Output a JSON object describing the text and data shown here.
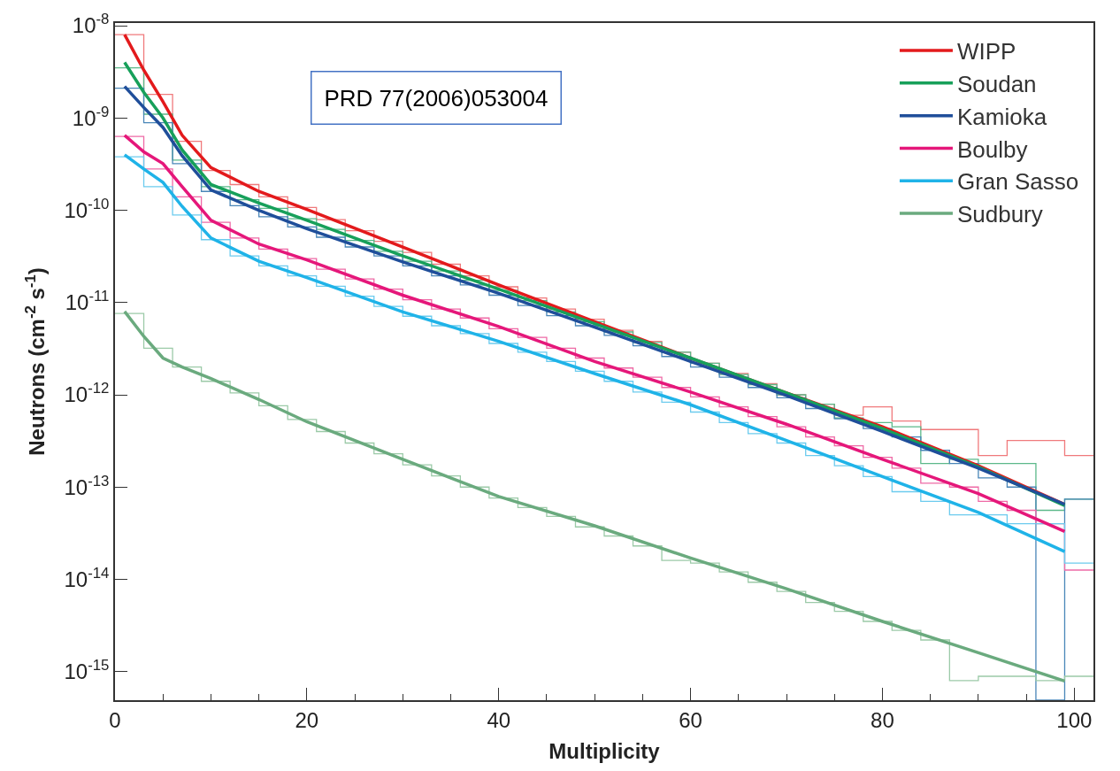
{
  "chart_data": {
    "type": "histogram",
    "xlabel": "Multiplicity",
    "ylabel": "Neutrons (cm$^{-2}$ s$^{-1}$)",
    "annotations": [
      "PRD 77(2006)053004"
    ],
    "bins": [
      0,
      3,
      6,
      9,
      12,
      15,
      18,
      21,
      24,
      27,
      30,
      33,
      36,
      39,
      42,
      45,
      48,
      51,
      54,
      57,
      60,
      63,
      66,
      69,
      72,
      75,
      78,
      81,
      84,
      87,
      90,
      93,
      96,
      99,
      102
    ],
    "xlim": [
      0,
      102
    ],
    "xticks": [
      0,
      20,
      40,
      60,
      80,
      100
    ],
    "log": "y",
    "ylim": [
      4.9e-16,
      1.07e-08
    ],
    "yticks": [
      {
        "value": 1e-15,
        "label": "10$^{-15}$"
      },
      {
        "value": 1e-14,
        "label": "10$^{-14}$"
      },
      {
        "value": 1e-13,
        "label": "10$^{-13}$"
      },
      {
        "value": 1e-12,
        "label": "10$^{-12}$"
      },
      {
        "value": 1e-11,
        "label": "10$^{-11}$"
      },
      {
        "value": 1e-10,
        "label": "10$^{-10}$"
      },
      {
        "value": 1e-09,
        "label": "10$^{-9}$"
      },
      {
        "value": 1e-08,
        "label": "10$^{-8}$"
      }
    ],
    "legend": "top right",
    "series": [
      {
        "color": "#f07a7c",
        "values": [
          8e-09,
          1.8e-09,
          5.6e-10,
          2.7e-10,
          1.9e-10,
          1.4e-10,
          1.07e-10,
          7.9e-11,
          6e-11,
          4.6e-11,
          3.5e-11,
          2.6e-11,
          1.95e-11,
          1.48e-11,
          1.12e-11,
          8.5e-12,
          6.6e-12,
          5e-12,
          3.8e-12,
          2.9e-12,
          2.2e-12,
          1.7e-12,
          1.32e-12,
          1e-12,
          7.9e-13,
          6e-13,
          7.4e-13,
          5.2e-13,
          4.2e-13,
          4.2e-13,
          2.2e-13,
          3.2e-13,
          3.2e-13,
          2.2e-13
        ]
      },
      {
        "color": "#5cb98a",
        "values": [
          3.5e-09,
          1.1e-09,
          3.5e-10,
          1.8e-10,
          1.3e-10,
          1.05e-10,
          8.1e-11,
          6.2e-11,
          4.7e-11,
          3.6e-11,
          2.8e-11,
          2.2e-11,
          1.74e-11,
          1.35e-11,
          1.05e-11,
          7.9e-12,
          6.2e-12,
          4.8e-12,
          3.7e-12,
          2.9e-12,
          2.2e-12,
          1.66e-12,
          1.29e-12,
          1e-12,
          7.9e-13,
          5.6e-13,
          5e-13,
          4.5e-13,
          1.8e-13,
          2e-13,
          1.8e-13,
          1.8e-13,
          5.6e-14,
          7.4e-14
        ]
      },
      {
        "color": "#4a86b8",
        "values": [
          2.1e-09,
          8.9e-10,
          3.2e-10,
          1.6e-10,
          1.12e-10,
          8.5e-11,
          6.6e-11,
          5.1e-11,
          4e-11,
          3.2e-11,
          2.5e-11,
          1.95e-11,
          1.55e-11,
          1.2e-11,
          9.3e-12,
          7.2e-12,
          5.6e-12,
          4.4e-12,
          3.4e-12,
          2.6e-12,
          2e-12,
          1.55e-12,
          1.2e-12,
          9.3e-13,
          7.1e-13,
          5.5e-13,
          4.3e-13,
          3.5e-13,
          2.5e-13,
          1.8e-13,
          1.26e-13,
          1e-13,
          null,
          7.4e-14
        ]
      },
      {
        "color": "#ee6aa6",
        "values": [
          6.3e-10,
          2.8e-10,
          1.4e-10,
          7.4e-11,
          5e-11,
          3.8e-11,
          3e-11,
          2.3e-11,
          1.8e-11,
          1.4e-11,
          1.07e-11,
          8.5e-12,
          6.8e-12,
          5.2e-12,
          4.2e-12,
          3.2e-12,
          2.5e-12,
          1.95e-12,
          1.55e-12,
          1.2e-12,
          9.5e-13,
          7.4e-13,
          5.8e-13,
          4.5e-13,
          3.5e-13,
          2.8e-13,
          2.1e-13,
          1.6e-13,
          1.1e-13,
          1e-13,
          7e-14,
          5.6e-14,
          4e-14,
          1.26e-14
        ]
      },
      {
        "color": "#6ccbee",
        "values": [
          3.8e-10,
          1.8e-10,
          8.9e-11,
          4.8e-11,
          3.2e-11,
          2.5e-11,
          1.95e-11,
          1.5e-11,
          1.17e-11,
          9.1e-12,
          7.1e-12,
          5.6e-12,
          4.6e-12,
          3.6e-12,
          2.9e-12,
          2.3e-12,
          1.8e-12,
          1.4e-12,
          1.07e-12,
          8.3e-13,
          6.5e-13,
          5e-13,
          3.8e-13,
          3e-13,
          2.2e-13,
          1.7e-13,
          1.3e-13,
          8.9e-14,
          7e-14,
          5e-14,
          5e-14,
          4e-14,
          4e-14,
          1.5e-14
        ]
      },
      {
        "color": "#9ccaa8",
        "values": [
          7.6e-12,
          3.2e-12,
          2e-12,
          1.4e-12,
          1.05e-12,
          7.6e-13,
          5.4e-13,
          4e-13,
          3e-13,
          2.3e-13,
          1.74e-13,
          1.32e-13,
          1e-13,
          7.6e-14,
          6e-14,
          4.8e-14,
          3.7e-14,
          2.95e-14,
          2.3e-14,
          1.6e-14,
          1.5e-14,
          1.2e-14,
          9.3e-15,
          7.4e-15,
          5.6e-15,
          4.5e-15,
          3.5e-15,
          2.8e-15,
          2.2e-15,
          8e-16,
          8.9e-16,
          8.9e-16,
          8e-16,
          8.9e-16
        ]
      },
      {
        "type": "line",
        "name": "WIPP",
        "color": "#e31a1c",
        "x": [
          1,
          3,
          5,
          7,
          10,
          15,
          20,
          30,
          40,
          50,
          60,
          70,
          80,
          90,
          99
        ],
        "values": [
          8e-09,
          3.3e-09,
          1.5e-09,
          6.5e-10,
          2.9e-10,
          1.6e-10,
          1.02e-10,
          4e-11,
          1.55e-11,
          6.2e-12,
          2.5e-12,
          1.05e-12,
          4.5e-13,
          1.7e-13,
          6.5e-14
        ]
      },
      {
        "type": "line",
        "name": "Soudan",
        "color": "#17a05a",
        "x": [
          1,
          3,
          5,
          7,
          10,
          15,
          20,
          30,
          40,
          50,
          60,
          70,
          80,
          90,
          99
        ],
        "values": [
          4e-09,
          1.9e-09,
          1e-09,
          4.5e-10,
          1.9e-10,
          1.2e-10,
          7.8e-11,
          3.2e-11,
          1.4e-11,
          5.9e-12,
          2.5e-12,
          1.05e-12,
          4.3e-13,
          1.65e-13,
          6.3e-14
        ]
      },
      {
        "type": "line",
        "name": "Kamioka",
        "color": "#1f4e9a",
        "x": [
          1,
          3,
          5,
          7,
          10,
          15,
          20,
          30,
          40,
          50,
          60,
          70,
          80,
          90,
          99
        ],
        "values": [
          2.2e-09,
          1.3e-09,
          7.9e-10,
          3.9e-10,
          1.66e-10,
          1e-10,
          6.3e-11,
          2.75e-11,
          1.26e-11,
          5.4e-12,
          2.3e-12,
          9.8e-13,
          4e-13,
          1.6e-13,
          6.5e-14
        ]
      },
      {
        "type": "line",
        "name": "Boulby",
        "color": "#e5177a",
        "x": [
          1,
          3,
          5,
          7,
          10,
          15,
          20,
          30,
          40,
          50,
          60,
          70,
          80,
          90,
          99
        ],
        "values": [
          6.5e-10,
          4.3e-10,
          3.2e-10,
          1.8e-10,
          7.8e-11,
          4.3e-11,
          2.9e-11,
          1.2e-11,
          5.5e-12,
          2.3e-12,
          1.07e-12,
          4.8e-13,
          2e-13,
          8.5e-14,
          3.3e-14
        ]
      },
      {
        "type": "line",
        "name": "Gran Sasso",
        "color": "#1fb3e8",
        "x": [
          1,
          3,
          5,
          7,
          10,
          15,
          20,
          30,
          40,
          50,
          60,
          70,
          80,
          90,
          99
        ],
        "values": [
          4e-10,
          2.8e-10,
          2e-10,
          1.1e-10,
          5e-11,
          2.8e-11,
          1.86e-11,
          7.9e-12,
          3.8e-12,
          1.7e-12,
          7.8e-13,
          3.2e-13,
          1.3e-13,
          5.3e-14,
          2e-14
        ]
      },
      {
        "type": "line",
        "name": "Sudbury",
        "color": "#6aaa7e",
        "x": [
          1,
          3,
          5,
          7,
          10,
          15,
          20,
          30,
          40,
          50,
          60,
          70,
          80,
          90,
          99
        ],
        "values": [
          8e-12,
          4.3e-12,
          2.5e-12,
          2e-12,
          1.5e-12,
          8.9e-13,
          5.1e-13,
          2e-13,
          7.9e-14,
          3.8e-14,
          1.7e-14,
          7.9e-15,
          3.5e-15,
          1.6e-15,
          7.9e-16
        ]
      }
    ]
  }
}
